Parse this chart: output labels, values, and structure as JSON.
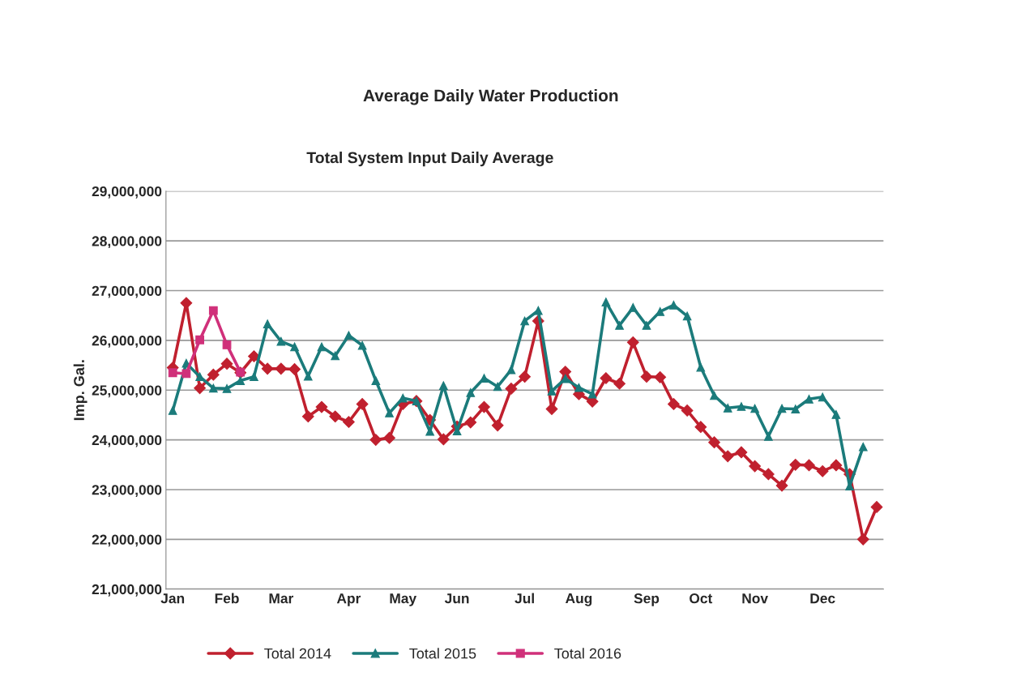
{
  "chart_data": {
    "type": "line",
    "title": "Average Daily Water Production",
    "subtitle": "Total System Input Daily Average",
    "ylabel": "Imp. Gal.",
    "categories": [
      "Jan",
      null,
      null,
      null,
      "Feb",
      null,
      null,
      null,
      "Mar",
      null,
      null,
      null,
      null,
      "Apr",
      null,
      null,
      null,
      "May",
      null,
      null,
      null,
      "Jun",
      null,
      null,
      null,
      null,
      "Jul",
      null,
      null,
      null,
      "Aug",
      null,
      null,
      null,
      null,
      "Sep",
      null,
      null,
      null,
      "Oct",
      null,
      null,
      null,
      "Nov",
      null,
      null,
      null,
      null,
      "Dec",
      null,
      null,
      null,
      null
    ],
    "series": [
      {
        "name": "Total 2014",
        "color": "#c0202e",
        "marker": "diamond",
        "values": [
          25450000,
          26750000,
          25040000,
          25310000,
          25530000,
          25350000,
          25680000,
          25430000,
          25430000,
          25420000,
          24470000,
          24660000,
          24470000,
          24360000,
          24720000,
          24000000,
          24040000,
          24720000,
          24780000,
          24400000,
          24010000,
          24270000,
          24350000,
          24660000,
          24290000,
          25030000,
          25270000,
          26390000,
          24620000,
          25370000,
          24920000,
          24770000,
          25240000,
          25130000,
          25960000,
          25270000,
          25260000,
          24720000,
          24590000,
          24260000,
          23950000,
          23670000,
          23750000,
          23470000,
          23310000,
          23080000,
          23500000,
          23490000,
          23370000,
          23490000,
          23310000,
          22000000,
          22650000
        ]
      },
      {
        "name": "Total 2015",
        "color": "#1b7b7b",
        "marker": "triangle",
        "values": [
          24590000,
          25540000,
          25270000,
          25040000,
          25030000,
          25190000,
          25270000,
          26330000,
          25980000,
          25870000,
          25280000,
          25870000,
          25690000,
          26100000,
          25900000,
          25190000,
          24540000,
          24840000,
          24780000,
          24170000,
          25090000,
          24180000,
          24950000,
          25240000,
          25070000,
          25410000,
          26390000,
          26600000,
          24980000,
          25230000,
          25050000,
          24920000,
          26770000,
          26300000,
          26660000,
          26300000,
          26580000,
          26710000,
          26490000,
          25460000,
          24890000,
          24640000,
          24670000,
          24630000,
          24070000,
          24630000,
          24620000,
          24820000,
          24860000,
          24510000,
          23070000,
          23860000,
          null
        ]
      },
      {
        "name": "Total 2016",
        "color": "#d0307a",
        "marker": "square",
        "values": [
          25350000,
          25330000,
          26010000,
          26600000,
          25910000,
          25360000,
          null,
          null,
          null,
          null,
          null,
          null,
          null,
          null,
          null,
          null,
          null,
          null,
          null,
          null,
          null,
          null,
          null,
          null,
          null,
          null,
          null,
          null,
          null,
          null,
          null,
          null,
          null,
          null,
          null,
          null,
          null,
          null,
          null,
          null,
          null,
          null,
          null,
          null,
          null,
          null,
          null,
          null,
          null,
          null,
          null,
          null,
          null
        ]
      }
    ],
    "ylim": [
      21000000,
      29000000
    ],
    "yticks": [
      {
        "value": 21000000,
        "label": "21,000,000"
      },
      {
        "value": 22000000,
        "label": "22,000,000"
      },
      {
        "value": 23000000,
        "label": "23,000,000"
      },
      {
        "value": 24000000,
        "label": "24,000,000"
      },
      {
        "value": 25000000,
        "label": "25,000,000"
      },
      {
        "value": 26000000,
        "label": "26,000,000"
      },
      {
        "value": 27000000,
        "label": "27,000,000"
      },
      {
        "value": 28000000,
        "label": "28,000,000"
      },
      {
        "value": 29000000,
        "label": "29,000,000"
      }
    ],
    "grid": "y",
    "legend": "bottom",
    "line_style": "solid"
  }
}
